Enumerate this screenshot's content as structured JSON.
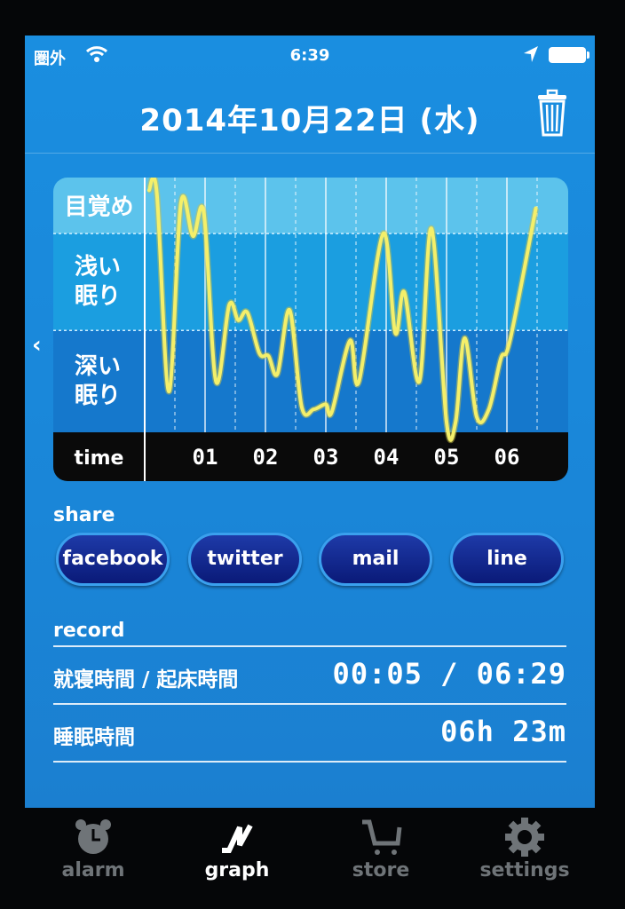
{
  "status_bar": {
    "carrier": "圏外",
    "time": "6:39",
    "icons": [
      "wifi-icon",
      "location-arrow-icon",
      "battery-icon"
    ]
  },
  "header": {
    "title": "2014年10月22日 (水)",
    "trash_icon": "trash-icon",
    "prev_icon": "chevron-left-icon"
  },
  "chart_data": {
    "type": "line",
    "title": "",
    "xlabel": "time",
    "y_categories": [
      "目覚め",
      "浅い眠り",
      "深い眠り"
    ],
    "x_ticks": [
      "01",
      "02",
      "03",
      "04",
      "05",
      "06"
    ],
    "x_tick_hours": [
      1,
      2,
      3,
      4,
      5,
      6
    ],
    "xlim_hours": [
      0,
      7
    ],
    "ylim": [
      0,
      100
    ],
    "band_bounds": [
      40,
      78
    ],
    "line_color": "#f4ef6a",
    "band_colors": [
      "#5cc3ec",
      "#1b9ee0",
      "#1578cc"
    ],
    "points": [
      [
        0.07,
        95
      ],
      [
        0.2,
        94
      ],
      [
        0.4,
        16
      ],
      [
        0.6,
        90
      ],
      [
        0.8,
        77
      ],
      [
        0.98,
        86
      ],
      [
        1.18,
        20
      ],
      [
        1.4,
        50
      ],
      [
        1.55,
        44
      ],
      [
        1.7,
        47
      ],
      [
        1.9,
        31
      ],
      [
        2.05,
        30
      ],
      [
        2.2,
        23
      ],
      [
        2.4,
        48
      ],
      [
        2.6,
        10
      ],
      [
        2.8,
        9
      ],
      [
        3.0,
        11
      ],
      [
        3.1,
        8
      ],
      [
        3.4,
        36
      ],
      [
        3.55,
        20
      ],
      [
        3.95,
        78
      ],
      [
        4.15,
        39
      ],
      [
        4.3,
        55
      ],
      [
        4.55,
        20
      ],
      [
        4.75,
        80
      ],
      [
        5.0,
        4
      ],
      [
        5.15,
        4
      ],
      [
        5.3,
        37
      ],
      [
        5.5,
        6
      ],
      [
        5.7,
        9
      ],
      [
        5.9,
        29
      ],
      [
        6.05,
        36
      ],
      [
        6.48,
        88
      ]
    ]
  },
  "share": {
    "label": "share",
    "buttons": [
      "facebook",
      "twitter",
      "mail",
      "line"
    ]
  },
  "record": {
    "label": "record",
    "rows": [
      {
        "label": "就寝時間 / 起床時間",
        "value": "00:05 / 06:29"
      },
      {
        "label": "睡眠時間",
        "value": "06h 23m"
      }
    ]
  },
  "tabbar": {
    "active": "graph",
    "tabs": [
      {
        "label": "alarm",
        "icon": "alarm-clock-icon"
      },
      {
        "label": "graph",
        "icon": "graph-icon"
      },
      {
        "label": "store",
        "icon": "cart-icon"
      },
      {
        "label": "settings",
        "icon": "gear-icon"
      }
    ]
  }
}
